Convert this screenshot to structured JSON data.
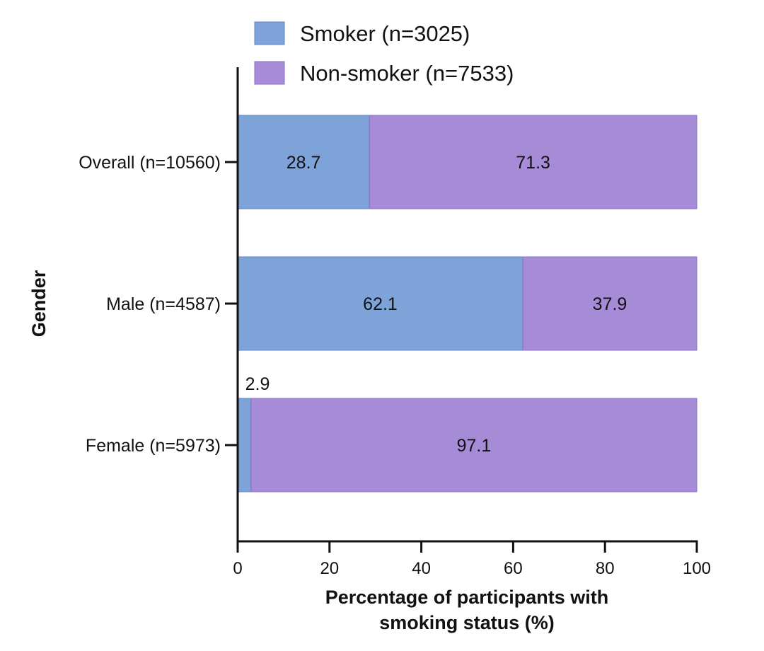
{
  "chart_data": {
    "type": "bar",
    "orientation": "horizontal",
    "stacked": true,
    "categories": [
      "Overall (n=10560)",
      "Male (n=4587)",
      "Female (n=5973)"
    ],
    "series": [
      {
        "name": "Smoker (n=3025)",
        "values": [
          28.7,
          62.1,
          2.9
        ],
        "color": "#7ea3d8"
      },
      {
        "name": "Non-smoker (n=7533)",
        "values": [
          71.3,
          37.9,
          97.1
        ],
        "color": "#a68bd6"
      }
    ],
    "data_labels": [
      [
        "28.7",
        "62.1",
        "2.9"
      ],
      [
        "71.3",
        "37.9",
        "97.1"
      ]
    ],
    "xlabel_lines": [
      "Percentage of participants with",
      "smoking status (%)"
    ],
    "ylabel": "Gender",
    "xlim": [
      0,
      100
    ],
    "xticks": [
      0,
      20,
      40,
      60,
      80,
      100
    ],
    "grid": false,
    "legend_placement": "top"
  }
}
